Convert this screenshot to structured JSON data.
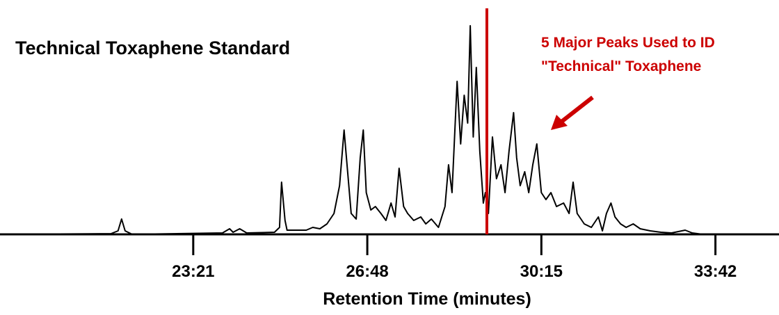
{
  "chart_data": {
    "type": "line",
    "title": "Technical Toxaphene Standard",
    "annotation": [
      "5 Major Peaks Used to ID",
      "\"Technical\" Toxaphene"
    ],
    "x_label": "Retention Time (minutes)",
    "xlim": [
      19.52,
      34.96
    ],
    "ylim": [
      0,
      300
    ],
    "xticks": [
      {
        "value": 23.35,
        "label": "23:21"
      },
      {
        "value": 26.8,
        "label": "26:48"
      },
      {
        "value": 30.25,
        "label": "30:15"
      },
      {
        "value": 33.7,
        "label": "33:42"
      }
    ],
    "vline": {
      "x": 29.17,
      "color": "#cc0000"
    },
    "series": [
      {
        "color": "#000000",
        "x": [
          19.52,
          21.72,
          21.86,
          21.93,
          22.0,
          22.14,
          23.93,
          24.07,
          24.14,
          24.27,
          24.41,
          24.96,
          25.06,
          25.1,
          25.17,
          25.21,
          25.59,
          25.72,
          25.86,
          26.0,
          26.14,
          26.25,
          26.34,
          26.41,
          26.48,
          26.58,
          26.66,
          26.72,
          26.78,
          26.87,
          26.96,
          27.07,
          27.17,
          27.27,
          27.35,
          27.43,
          27.52,
          27.6,
          27.72,
          27.86,
          27.96,
          28.07,
          28.21,
          28.34,
          28.41,
          28.48,
          28.58,
          28.65,
          28.72,
          28.79,
          28.84,
          28.9,
          28.96,
          29.03,
          29.1,
          29.14,
          29.2,
          29.28,
          29.36,
          29.45,
          29.53,
          29.61,
          29.7,
          29.76,
          29.83,
          29.92,
          30.0,
          30.08,
          30.16,
          30.25,
          30.34,
          30.44,
          30.55,
          30.69,
          30.8,
          30.88,
          30.96,
          31.1,
          31.24,
          31.38,
          31.46,
          31.54,
          31.63,
          31.71,
          31.82,
          31.93,
          32.07,
          32.21,
          32.41,
          32.62,
          32.83,
          33.1,
          33.24,
          33.45,
          34.96
        ],
        "values": [
          0,
          1,
          5,
          22,
          5,
          0,
          2,
          8,
          3,
          8,
          2,
          3,
          10,
          75,
          20,
          6,
          6,
          10,
          8,
          15,
          30,
          70,
          150,
          90,
          30,
          22,
          110,
          150,
          60,
          35,
          40,
          30,
          20,
          45,
          25,
          95,
          40,
          30,
          20,
          25,
          15,
          22,
          10,
          40,
          100,
          60,
          220,
          130,
          200,
          160,
          300,
          140,
          240,
          120,
          45,
          60,
          30,
          140,
          80,
          100,
          60,
          120,
          175,
          110,
          70,
          90,
          60,
          100,
          130,
          60,
          50,
          60,
          40,
          45,
          30,
          75,
          30,
          15,
          10,
          25,
          5,
          30,
          45,
          25,
          15,
          10,
          15,
          8,
          5,
          3,
          2,
          6,
          2,
          0,
          0
        ]
      }
    ]
  }
}
